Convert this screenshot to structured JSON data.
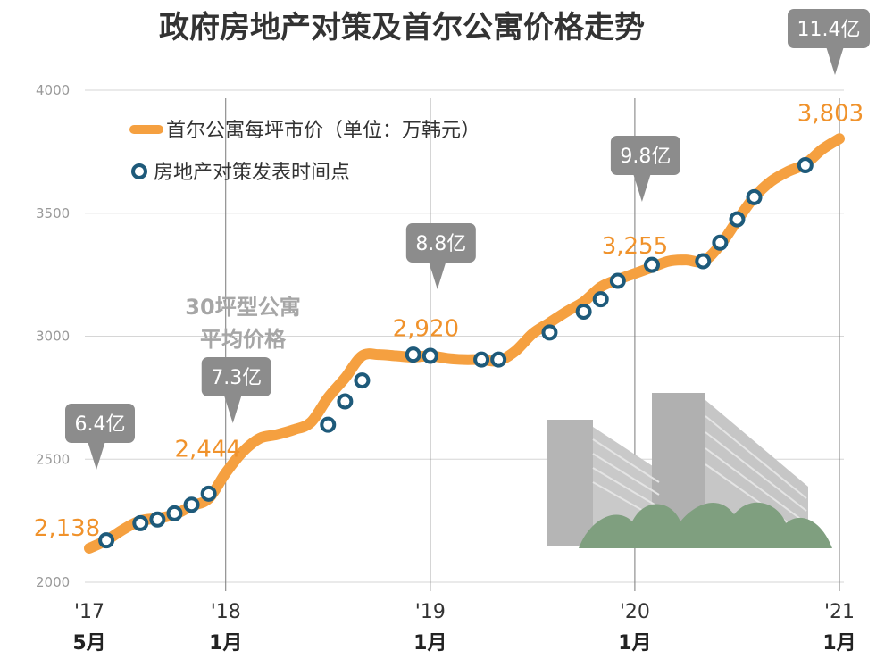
{
  "chart_data": {
    "type": "line",
    "title": "政府房地产对策及首尔公寓价格走势",
    "ylim": [
      2000,
      4000
    ],
    "yticks": [
      4000,
      3500,
      3000,
      2500,
      2000
    ],
    "x_ticks": [
      {
        "year": "'17",
        "month": "5月",
        "t": 0
      },
      {
        "year": "'18",
        "month": "1月",
        "t": 8
      },
      {
        "year": "'19",
        "month": "1月",
        "t": 20
      },
      {
        "year": "'20",
        "month": "1月",
        "t": 32
      },
      {
        "year": "'21",
        "month": "1月",
        "t": 44
      }
    ],
    "grid": true,
    "legend": {
      "position": "top-left",
      "line_label": "首尔公寓每坪市价（单位：万韩元）",
      "point_label": "房地产对策发表时间点"
    },
    "series": [
      {
        "name": "首尔公寓每坪市价（单位：万韩元）",
        "color": "#f5a040",
        "points": [
          [
            0,
            2138
          ],
          [
            1,
            2170
          ],
          [
            2,
            2215
          ],
          [
            3,
            2250
          ],
          [
            4,
            2260
          ],
          [
            5,
            2275
          ],
          [
            6,
            2310
          ],
          [
            7,
            2340
          ],
          [
            8,
            2444
          ],
          [
            9,
            2530
          ],
          [
            10,
            2585
          ],
          [
            11,
            2600
          ],
          [
            12,
            2620
          ],
          [
            13,
            2650
          ],
          [
            14,
            2750
          ],
          [
            15,
            2830
          ],
          [
            16,
            2920
          ],
          [
            17,
            2925
          ],
          [
            18,
            2920
          ],
          [
            19,
            2915
          ],
          [
            20,
            2920
          ],
          [
            21,
            2910
          ],
          [
            22,
            2905
          ],
          [
            23,
            2905
          ],
          [
            24,
            2900
          ],
          [
            25,
            2940
          ],
          [
            26,
            3010
          ],
          [
            27,
            3055
          ],
          [
            28,
            3100
          ],
          [
            29,
            3140
          ],
          [
            30,
            3200
          ],
          [
            31,
            3230
          ],
          [
            32,
            3255
          ],
          [
            33,
            3280
          ],
          [
            34,
            3305
          ],
          [
            35,
            3310
          ],
          [
            36,
            3305
          ],
          [
            37,
            3370
          ],
          [
            38,
            3470
          ],
          [
            39,
            3565
          ],
          [
            40,
            3630
          ],
          [
            41,
            3670
          ],
          [
            42,
            3700
          ],
          [
            43,
            3760
          ],
          [
            44,
            3803
          ]
        ]
      }
    ],
    "policy_points": [
      {
        "t": 1,
        "v": 2170
      },
      {
        "t": 3,
        "v": 2240
      },
      {
        "t": 4,
        "v": 2255
      },
      {
        "t": 5,
        "v": 2280
      },
      {
        "t": 6,
        "v": 2315
      },
      {
        "t": 7,
        "v": 2360
      },
      {
        "t": 14,
        "v": 2640
      },
      {
        "t": 15,
        "v": 2735
      },
      {
        "t": 16,
        "v": 2820
      },
      {
        "t": 19,
        "v": 2925
      },
      {
        "t": 20,
        "v": 2920
      },
      {
        "t": 23,
        "v": 2905
      },
      {
        "t": 24,
        "v": 2905
      },
      {
        "t": 27,
        "v": 3015
      },
      {
        "t": 29,
        "v": 3100
      },
      {
        "t": 30,
        "v": 3150
      },
      {
        "t": 31,
        "v": 3225
      },
      {
        "t": 33,
        "v": 3290
      },
      {
        "t": 36,
        "v": 3305
      },
      {
        "t": 37,
        "v": 3380
      },
      {
        "t": 38,
        "v": 3475
      },
      {
        "t": 39,
        "v": 3565
      },
      {
        "t": 42,
        "v": 3695
      }
    ],
    "value_labels": [
      {
        "t": 0,
        "v": 2138,
        "text": "2,138"
      },
      {
        "t": 8,
        "v": 2444,
        "text": "2,444"
      },
      {
        "t": 20,
        "v": 2920,
        "text": "2,920"
      },
      {
        "t": 32,
        "v": 3255,
        "text": "3,255"
      },
      {
        "t": 44,
        "v": 3803,
        "text": "3,803"
      }
    ],
    "callouts": [
      {
        "t": 0,
        "text": "6.4亿"
      },
      {
        "t": 8,
        "text": "7.3亿"
      },
      {
        "t": 20,
        "text": "8.8亿"
      },
      {
        "t": 32,
        "text": "9.8亿"
      },
      {
        "t": 44,
        "text": "11.4亿"
      }
    ],
    "side_note": [
      "30坪型公寓",
      "平均价格"
    ],
    "colors": {
      "line": "#f5a040",
      "marker_ring": "#1e5a7a",
      "callout_bg": "#8c8c8c",
      "value_label": "#f0922b",
      "grid": "#d6d6d6"
    }
  }
}
